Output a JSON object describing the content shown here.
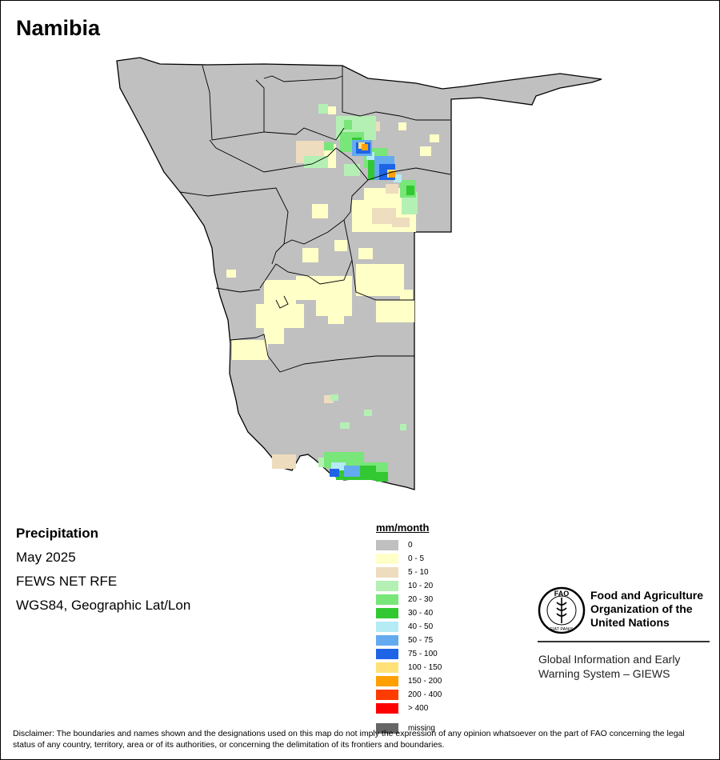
{
  "title": "Namibia",
  "info": {
    "variable": "Precipitation",
    "period": "May 2025",
    "source": "FEWS NET RFE",
    "projection": "WGS84, Geographic Lat/Lon"
  },
  "legend": {
    "title": "mm/month",
    "items": [
      {
        "label": "0",
        "color": "#c0c0c0"
      },
      {
        "label": "0 - 5",
        "color": "#ffffc8"
      },
      {
        "label": "5 - 10",
        "color": "#eedcbe"
      },
      {
        "label": "10 - 20",
        "color": "#b4f0b4"
      },
      {
        "label": "20 - 30",
        "color": "#78e678"
      },
      {
        "label": "30 - 40",
        "color": "#32c832"
      },
      {
        "label": "40 - 50",
        "color": "#b4ebf5"
      },
      {
        "label": "50 - 75",
        "color": "#64aaf0"
      },
      {
        "label": "75 - 100",
        "color": "#1e64e6"
      },
      {
        "label": "100 - 150",
        "color": "#ffe178"
      },
      {
        "label": "150 - 200",
        "color": "#ffa000"
      },
      {
        "label": "200 - 400",
        "color": "#ff3c00"
      },
      {
        "label": "> 400",
        "color": "#ff0000"
      }
    ],
    "missing": {
      "label": "missing",
      "color": "#666666"
    }
  },
  "org": {
    "logo_text": "FAO",
    "logo_motto": "FIAT PANIS",
    "name": "Food and Agriculture Organization of the United Nations",
    "system": "Global Information and Early Warning System – GIEWS"
  },
  "disclaimer": "Disclaimer: The boundaries and names shown and the designations used on this map do not imply the expression of any opinion whatsoever on the part of FAO concerning the legal status of any country, territory, area or of its authorities, or concerning the delimitation of its frontiers and boundaries."
}
